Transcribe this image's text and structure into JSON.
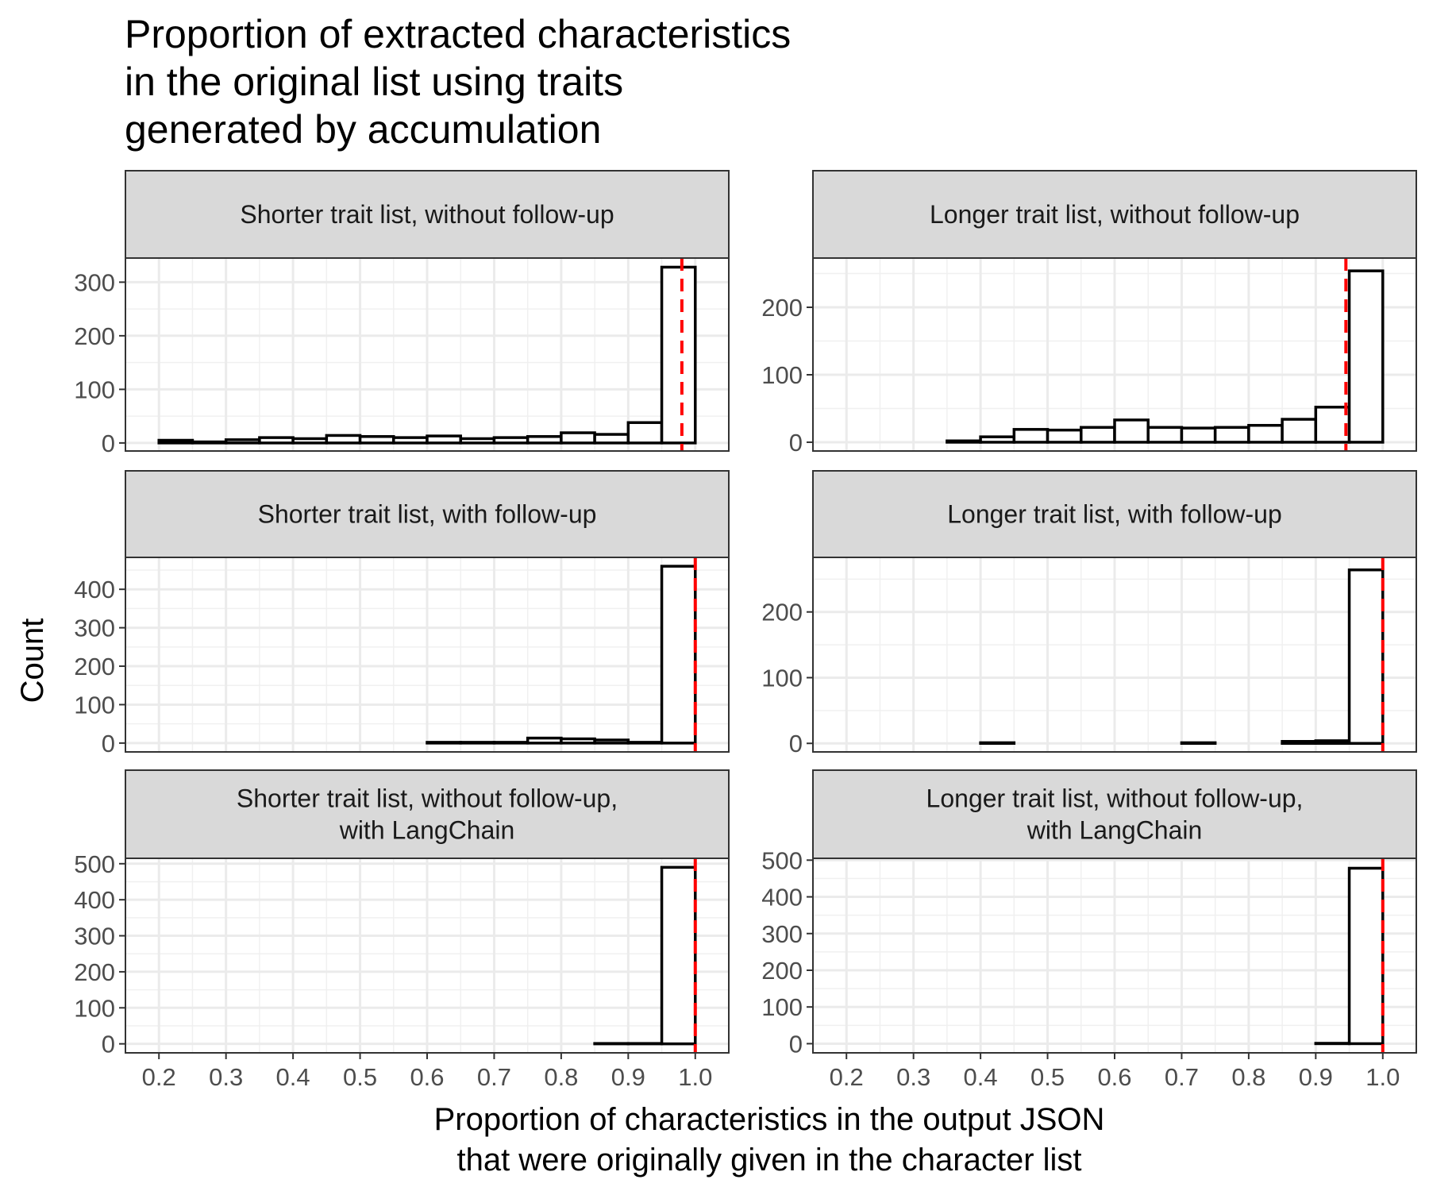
{
  "chart_data": {
    "type": "bar",
    "title": [
      "Proportion of extracted characteristics",
      "in the original list using traits",
      "generated by accumulation"
    ],
    "xlabel": [
      "Proportion of characteristics in the output JSON",
      "that were originally given in the character list"
    ],
    "ylabel": "Count",
    "xlim": [
      0.15,
      1.05
    ],
    "x_ticks": [
      0.2,
      0.3,
      0.4,
      0.5,
      0.6,
      0.7,
      0.8,
      0.9,
      1.0
    ],
    "x_tick_labels": [
      "0.2",
      "0.3",
      "0.4",
      "0.5",
      "0.6",
      "0.7",
      "0.8",
      "0.9",
      "1.0"
    ],
    "bin_edges": [
      0.2,
      0.25,
      0.3,
      0.35,
      0.4,
      0.45,
      0.5,
      0.55,
      0.6,
      0.65,
      0.7,
      0.75,
      0.8,
      0.85,
      0.9,
      0.95,
      1.0
    ],
    "grid": true,
    "reference_line_color": "#ff0000",
    "bar_fill": "#ffffff",
    "bar_stroke": "#000000",
    "panels": [
      {
        "label": [
          "Shorter trait list, without follow-up"
        ],
        "ylim": [
          -15,
          345
        ],
        "y_ticks": [
          0,
          100,
          200,
          300
        ],
        "y_tick_labels": [
          "0",
          "100",
          "200",
          "300"
        ],
        "counts": [
          5,
          2,
          6,
          10,
          8,
          14,
          12,
          10,
          13,
          8,
          10,
          12,
          19,
          16,
          38,
          328
        ],
        "reference_x": 0.98
      },
      {
        "label": [
          "Longer trait list, without follow-up"
        ],
        "ylim": [
          -13,
          273
        ],
        "y_ticks": [
          0,
          100,
          200
        ],
        "y_tick_labels": [
          "0",
          "100",
          "200"
        ],
        "counts": [
          0,
          0,
          0,
          2,
          8,
          19,
          18,
          22,
          33,
          22,
          21,
          22,
          25,
          34,
          52,
          254
        ],
        "reference_x": 0.945
      },
      {
        "label": [
          "Shorter trait list, with follow-up"
        ],
        "ylim": [
          -23,
          483
        ],
        "y_ticks": [
          0,
          100,
          200,
          300,
          400
        ],
        "y_tick_labels": [
          "0",
          "100",
          "200",
          "300",
          "400"
        ],
        "counts": [
          0,
          0,
          0,
          0,
          0,
          0,
          0,
          0,
          2,
          2,
          2,
          13,
          11,
          8,
          2,
          460
        ],
        "reference_x": 1.0
      },
      {
        "label": [
          "Longer trait list, with follow-up"
        ],
        "ylim": [
          -13,
          283
        ],
        "y_ticks": [
          0,
          100,
          200
        ],
        "y_tick_labels": [
          "0",
          "100",
          "200"
        ],
        "counts": [
          0,
          0,
          0,
          0,
          1,
          0,
          0,
          0,
          0,
          0,
          1,
          0,
          0,
          3,
          4,
          264
        ],
        "reference_x": 1.0
      },
      {
        "label": [
          "Shorter trait list, without follow-up,",
          "with LangChain"
        ],
        "ylim": [
          -25,
          515
        ],
        "y_ticks": [
          0,
          100,
          200,
          300,
          400,
          500
        ],
        "y_tick_labels": [
          "0",
          "100",
          "200",
          "300",
          "400",
          "500"
        ],
        "counts": [
          0,
          0,
          0,
          0,
          0,
          0,
          0,
          0,
          0,
          0,
          0,
          0,
          0,
          1,
          1,
          490
        ],
        "reference_x": 1.0
      },
      {
        "label": [
          "Longer trait list, without follow-up,",
          "with LangChain"
        ],
        "ylim": [
          -25,
          505
        ],
        "y_ticks": [
          0,
          100,
          200,
          300,
          400,
          500
        ],
        "y_tick_labels": [
          "0",
          "100",
          "200",
          "300",
          "400",
          "500"
        ],
        "counts": [
          0,
          0,
          0,
          0,
          0,
          0,
          0,
          0,
          0,
          0,
          0,
          0,
          0,
          0,
          1,
          478
        ],
        "reference_x": 1.0
      }
    ]
  }
}
